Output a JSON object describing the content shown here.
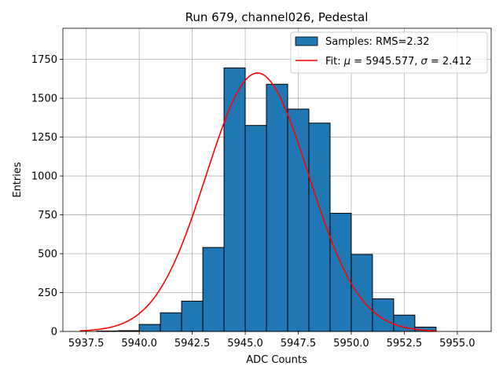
{
  "chart_data": {
    "type": "bar",
    "title": "Run 679, channel026, Pedestal",
    "xlabel": "ADC Counts",
    "ylabel": "Entries",
    "xlim": [
      5936.4,
      5956.6
    ],
    "ylim": [
      0,
      1950
    ],
    "xticks": [
      5937.5,
      5940.0,
      5942.5,
      5945.0,
      5947.5,
      5950.0,
      5952.5,
      5955.0
    ],
    "xtick_labels": [
      "5937.5",
      "5940.0",
      "5942.5",
      "5945.0",
      "5947.5",
      "5950.0",
      "5952.5",
      "5955.0"
    ],
    "yticks": [
      0,
      250,
      500,
      750,
      1000,
      1250,
      1500,
      1750
    ],
    "ytick_labels": [
      "0",
      "250",
      "500",
      "750",
      "1000",
      "1250",
      "1500",
      "1750"
    ],
    "grid": true,
    "legend_position": "top-right",
    "histogram": {
      "bin_edges": [
        5938,
        5939,
        5940,
        5941,
        5942,
        5943,
        5944,
        5945,
        5946,
        5947,
        5948,
        5949,
        5950,
        5951,
        5952,
        5953,
        5954
      ],
      "counts": [
        3,
        5,
        45,
        120,
        195,
        540,
        1695,
        1325,
        1590,
        1430,
        1340,
        760,
        495,
        210,
        105,
        28,
        12
      ],
      "color": "#1f77b4",
      "edge_color": "#000000"
    },
    "fit": {
      "mu": 5945.577,
      "sigma": 2.412,
      "amplitude": 1662,
      "x_range": [
        5937.2,
        5954.0
      ],
      "color": "#ff0000"
    },
    "legend": [
      {
        "label": "Samples: RMS=2.32",
        "kind": "patch",
        "color": "#1f77b4"
      },
      {
        "label_prefix": "Fit: ",
        "mu_symbol": "μ",
        "mu_text": " = 5945.577, ",
        "sigma_symbol": "σ",
        "sigma_text": " = 2.412",
        "kind": "line",
        "color": "#ff0000"
      }
    ]
  }
}
